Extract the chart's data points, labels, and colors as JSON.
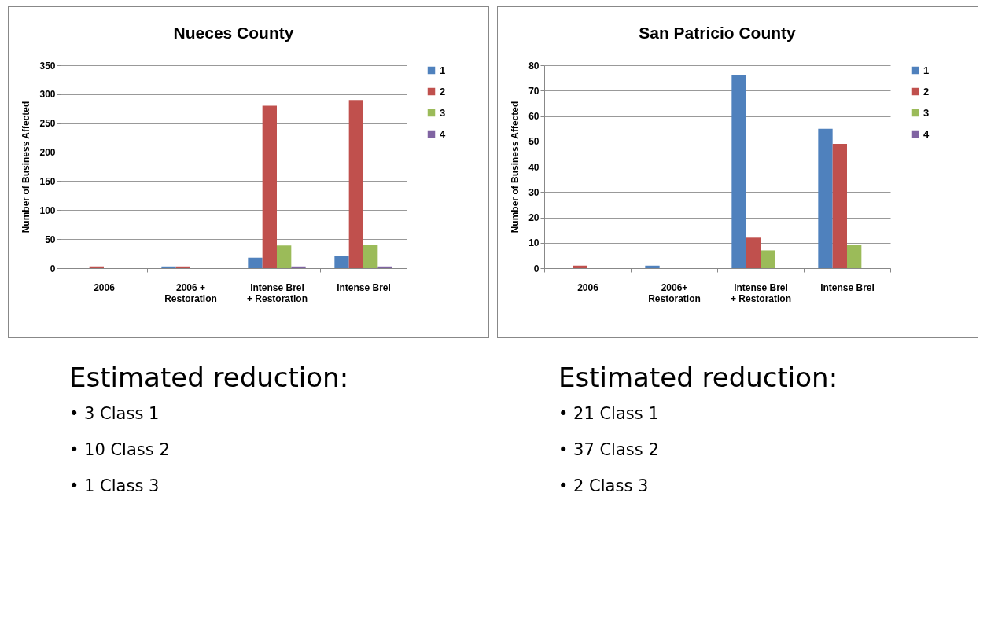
{
  "chart_data": [
    {
      "type": "bar",
      "title": "Nueces County",
      "ylabel": "Number of Business Affected",
      "categories": [
        "2006",
        "2006 + Restoration",
        "Intense Brel + Restoration",
        "Intense Brel"
      ],
      "series": [
        {
          "name": "1",
          "color": "#4f81bd",
          "values": [
            0,
            3,
            18,
            21
          ]
        },
        {
          "name": "2",
          "color": "#c0504d",
          "values": [
            3,
            3,
            280,
            290
          ]
        },
        {
          "name": "3",
          "color": "#9bbb59",
          "values": [
            0,
            0,
            39,
            40
          ]
        },
        {
          "name": "4",
          "color": "#8064a2",
          "values": [
            0,
            0,
            3,
            3
          ]
        }
      ],
      "ylim": [
        0,
        350
      ],
      "yticks": [
        0,
        50,
        100,
        150,
        200,
        250,
        300,
        350
      ],
      "grid": "y",
      "legend": "right",
      "annotations": [
        "Estimated reduction:",
        "• 3 Class 1",
        "• 10 Class 2",
        "• 1 Class 3"
      ]
    },
    {
      "type": "bar",
      "title": "San Patricio County",
      "ylabel": "Number of Business Affected",
      "categories": [
        "2006",
        "2006+ Restoration",
        "Intense Brel + Restoration",
        "Intense Brel"
      ],
      "series": [
        {
          "name": "1",
          "color": "#4f81bd",
          "values": [
            0,
            1,
            76,
            55
          ]
        },
        {
          "name": "2",
          "color": "#c0504d",
          "values": [
            1,
            0,
            12,
            49
          ]
        },
        {
          "name": "3",
          "color": "#9bbb59",
          "values": [
            0,
            0,
            7,
            9
          ]
        },
        {
          "name": "4",
          "color": "#8064a2",
          "values": [
            0,
            0,
            0,
            0
          ]
        }
      ],
      "ylim": [
        0,
        80
      ],
      "yticks": [
        0,
        10,
        20,
        30,
        40,
        50,
        60,
        70,
        80
      ],
      "grid": "y",
      "legend": "right",
      "annotations": [
        "Estimated reduction:",
        "• 21 Class 1",
        "• 37 Class 2",
        "• 2 Class 3"
      ]
    }
  ]
}
